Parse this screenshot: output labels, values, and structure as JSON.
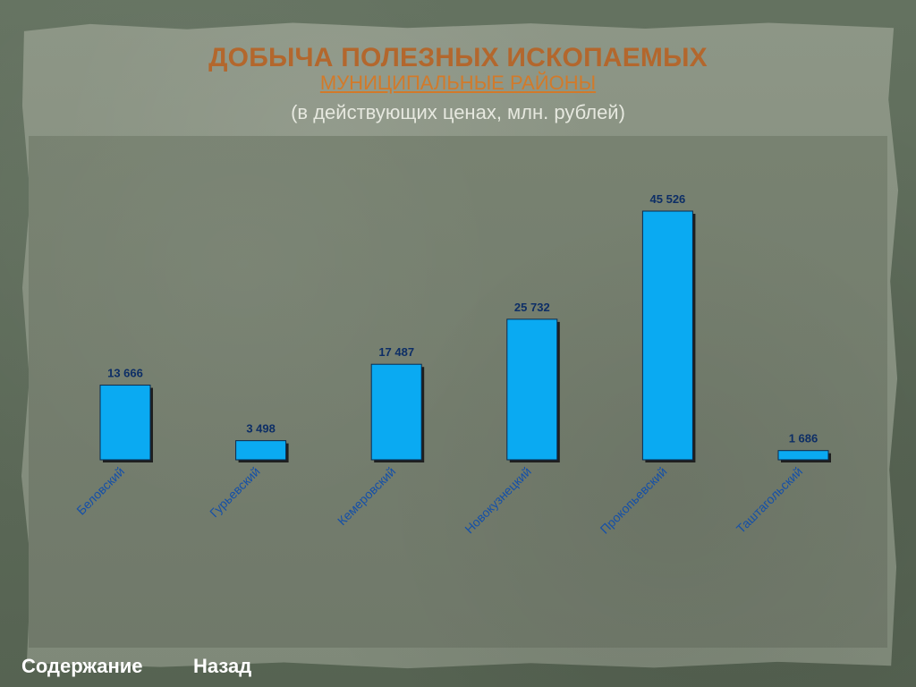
{
  "header": {
    "title": "ДОБЫЧА ПОЛЕЗНЫХ ИСКОПАЕМЫХ",
    "subtitle": "МУНИЦИПАЛЬНЫЕ РАЙОНЫ",
    "units": "(в действующих ценах, млн. рублей)"
  },
  "nav": {
    "contents_label": "Содержание",
    "back_label": "Назад"
  },
  "colors": {
    "title": "#b3672d",
    "subtitle": "#d27a2a",
    "bar_fill": "#0aaaf2",
    "bar_stroke": "#0a2b4f",
    "bar_shadow": "#1f1f1f",
    "data_label": "#0d2e66",
    "category_label": "#1550a8"
  },
  "chart_data": {
    "type": "bar",
    "title": "ДОБЫЧА ПОЛЕЗНЫХ ИСКОПАЕМЫХ",
    "xlabel": "",
    "ylabel": "",
    "grid": false,
    "legend": "none",
    "ylim": [
      0,
      50000
    ],
    "categories": [
      "Беловский",
      "Гурьевский",
      "Кемеровский",
      "Новокузнецкий",
      "Прокопьевский",
      "Таштагольский"
    ],
    "values": [
      13666,
      3498,
      17487,
      25732,
      45526,
      1686
    ],
    "value_labels": [
      "13 666",
      "3 498",
      "17 487",
      "25 732",
      "45 526",
      "1 686"
    ]
  }
}
